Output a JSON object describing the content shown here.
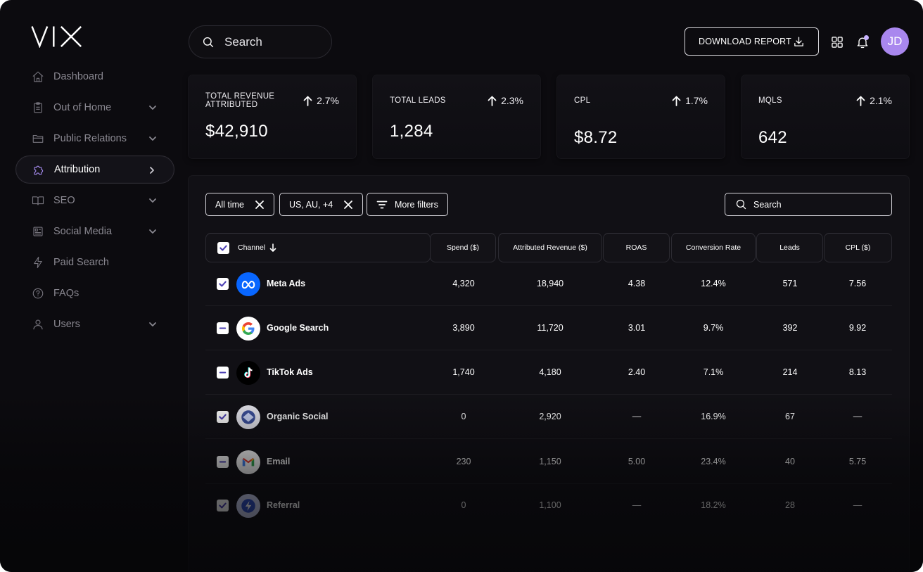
{
  "brand": {
    "logo_text": "VIX"
  },
  "sidebar": {
    "items": [
      {
        "label": "Dashboard",
        "icon": "home-icon",
        "has_chevron": false,
        "active": false
      },
      {
        "label": "Out of Home",
        "icon": "clipboard-icon",
        "has_chevron": true,
        "chevron": "down",
        "active": false
      },
      {
        "label": "Public Relations",
        "icon": "folder-icon",
        "has_chevron": true,
        "chevron": "down",
        "active": false
      },
      {
        "label": "Attribution",
        "icon": "puzzle-icon",
        "has_chevron": true,
        "chevron": "right",
        "active": true
      },
      {
        "label": "SEO",
        "icon": "book-icon",
        "has_chevron": true,
        "chevron": "down",
        "active": false
      },
      {
        "label": "Social Media",
        "icon": "newspaper-icon",
        "has_chevron": true,
        "chevron": "down",
        "active": false
      },
      {
        "label": "Paid Search",
        "icon": "lightning-icon",
        "has_chevron": false,
        "active": false
      },
      {
        "label": "FAQs",
        "icon": "help-icon",
        "has_chevron": false,
        "active": false
      },
      {
        "label": "Users",
        "icon": "user-icon",
        "has_chevron": true,
        "chevron": "down",
        "active": false
      }
    ],
    "accent": "#a68cf0"
  },
  "header": {
    "search_placeholder": "Search",
    "download_label": "DOWNLOAD REPORT",
    "avatar_initials": "JD",
    "avatar_color": "#a987ee"
  },
  "kpis": [
    {
      "label": "TOTAL REVENUE ATTRIBUTED",
      "delta": "2.7%",
      "value": "$42,910"
    },
    {
      "label": "TOTAL LEADS",
      "delta": "2.3%",
      "value": "1,284"
    },
    {
      "label": "CPL",
      "delta": "1.7%",
      "value": "$8.72"
    },
    {
      "label": "MQLS",
      "delta": "2.1%",
      "value": "642"
    }
  ],
  "filters": {
    "chips": [
      "All time",
      "US, AU, +4"
    ],
    "more_filters_label": "More filters",
    "search_placeholder": "Search"
  },
  "table": {
    "columns": [
      "Channel",
      "Spend ($)",
      "Attributed Revenue ($)",
      "ROAS",
      "Conversion Rate",
      "Leads",
      "CPL ($)"
    ],
    "rows": [
      {
        "channel": "Meta Ads",
        "logo": "meta-logo-icon",
        "check": "checked",
        "spend": "4,320",
        "revenue": "18,940",
        "roas": "4.38",
        "conv": "12.4%",
        "leads": "571",
        "cpl": "7.56"
      },
      {
        "channel": "Google Search",
        "logo": "google-logo-icon",
        "check": "indeterminate",
        "spend": "3,890",
        "revenue": "11,720",
        "roas": "3.01",
        "conv": "9.7%",
        "leads": "392",
        "cpl": "9.92"
      },
      {
        "channel": "TikTok Ads",
        "logo": "tiktok-logo-icon",
        "check": "indeterminate",
        "spend": "1,740",
        "revenue": "4,180",
        "roas": "2.40",
        "conv": "7.1%",
        "leads": "214",
        "cpl": "8.13"
      },
      {
        "channel": "Organic Social",
        "logo": "organic-social-logo-icon",
        "check": "checked",
        "spend": "0",
        "revenue": "2,920",
        "roas": "—",
        "conv": "16.9%",
        "leads": "67",
        "cpl": "—"
      },
      {
        "channel": "Email",
        "logo": "gmail-logo-icon",
        "check": "indeterminate",
        "spend": "230",
        "revenue": "1,150",
        "roas": "5.00",
        "conv": "23.4%",
        "leads": "40",
        "cpl": "5.75"
      },
      {
        "channel": "Referral",
        "logo": "referral-logo-icon",
        "check": "checked",
        "spend": "0",
        "revenue": "1,100",
        "roas": "—",
        "conv": "18.2%",
        "leads": "28",
        "cpl": "—"
      }
    ]
  }
}
